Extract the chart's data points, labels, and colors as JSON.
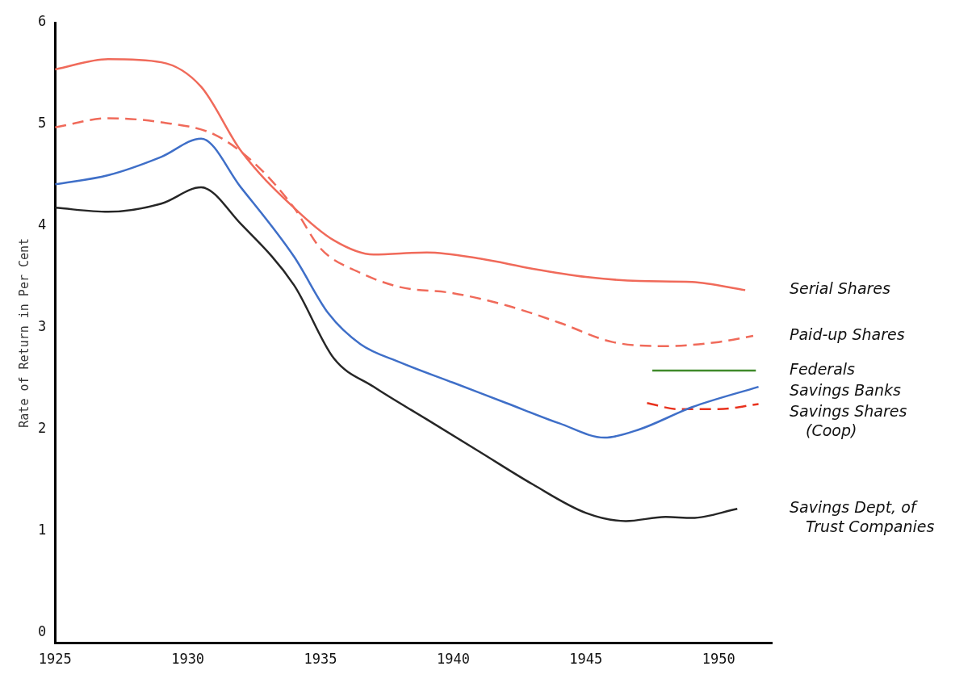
{
  "chart_data": {
    "type": "line",
    "ylabel": "Rate of Return in Per Cent",
    "xlim": [
      1925,
      1952
    ],
    "xticks": [
      1925,
      1930,
      1935,
      1940,
      1945,
      1950
    ],
    "ylim": [
      -0.1,
      6
    ],
    "yticks": [
      0,
      1,
      2,
      3,
      4,
      5,
      6
    ],
    "grid": false,
    "legend": false,
    "marker": "none",
    "series": [
      {
        "name": "Serial Shares",
        "color": "#f06a5a",
        "line_style": "solid",
        "x": [
          1925,
          1927,
          1929,
          1930.5,
          1932,
          1934,
          1935.5,
          1937,
          1939,
          1941,
          1943,
          1945,
          1947,
          1949,
          1951
        ],
        "values": [
          5.54,
          5.64,
          5.61,
          5.37,
          4.74,
          4.18,
          3.86,
          3.72,
          3.74,
          3.68,
          3.58,
          3.5,
          3.46,
          3.45,
          3.37
        ]
      },
      {
        "name": "Paid-up Shares",
        "color": "#f06a5a",
        "line_style": "dashed",
        "x": [
          1925,
          1927,
          1929,
          1931,
          1932.5,
          1934,
          1935,
          1936.5,
          1938,
          1940,
          1942,
          1944,
          1946,
          1948,
          1950,
          1951.3
        ],
        "values": [
          4.97,
          5.06,
          5.02,
          4.9,
          4.62,
          4.18,
          3.78,
          3.54,
          3.4,
          3.34,
          3.22,
          3.05,
          2.86,
          2.82,
          2.86,
          2.92
        ]
      },
      {
        "name": "Federals",
        "color": "#3f8a2a",
        "line_style": "solid",
        "x": [
          1947.5,
          1951.4
        ],
        "values": [
          2.58,
          2.58
        ]
      },
      {
        "name": "Savings Banks",
        "color": "#3f6fc8",
        "line_style": "solid",
        "x": [
          1925,
          1927,
          1929,
          1930.5,
          1932,
          1934,
          1935.3,
          1936.5,
          1938,
          1940,
          1942,
          1944,
          1945.7,
          1947,
          1949,
          1951.5
        ],
        "values": [
          4.41,
          4.5,
          4.68,
          4.86,
          4.38,
          3.7,
          3.14,
          2.84,
          2.66,
          2.46,
          2.26,
          2.06,
          1.92,
          2.0,
          2.22,
          2.42
        ]
      },
      {
        "name": "Savings Shares (Coop)",
        "color": "#e8321e",
        "line_style": "dashed",
        "x": [
          1947.3,
          1948.5,
          1950,
          1951.5
        ],
        "values": [
          2.26,
          2.2,
          2.2,
          2.25
        ]
      },
      {
        "name": "Savings Dept, of Trust Companies",
        "color": "#262626",
        "line_style": "solid",
        "x": [
          1925,
          1927,
          1929,
          1930.5,
          1932,
          1934,
          1935.5,
          1937,
          1939,
          1941,
          1943,
          1945,
          1946.5,
          1948,
          1949,
          1950.7
        ],
        "values": [
          4.18,
          4.14,
          4.22,
          4.38,
          4.02,
          3.42,
          2.7,
          2.42,
          2.1,
          1.78,
          1.46,
          1.18,
          1.1,
          1.14,
          1.13,
          1.22
        ]
      }
    ]
  }
}
